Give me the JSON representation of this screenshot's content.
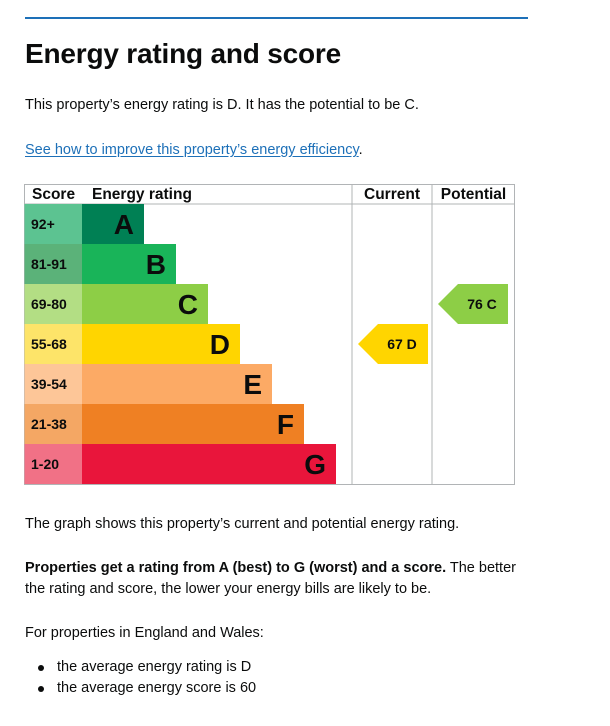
{
  "heading": "Energy rating and score",
  "intro": "This property’s energy rating is D. It has the potential to be C.",
  "improve_link": "See how to improve this property’s energy efficiency",
  "improve_link_suffix": ".",
  "chart_data": {
    "type": "bar",
    "headers": {
      "score": "Score",
      "rating": "Energy rating",
      "current": "Current",
      "potential": "Potential"
    },
    "bands": [
      {
        "score": "92+",
        "letter": "A",
        "bar_color": "#008054",
        "score_color": "#5cc391"
      },
      {
        "score": "81-91",
        "letter": "B",
        "bar_color": "#19b459",
        "score_color": "#5bb279"
      },
      {
        "score": "69-80",
        "letter": "C",
        "bar_color": "#8dce46",
        "score_color": "#b3de84"
      },
      {
        "score": "55-68",
        "letter": "D",
        "bar_color": "#ffd500",
        "score_color": "#fde469"
      },
      {
        "score": "39-54",
        "letter": "E",
        "bar_color": "#fcaa65",
        "score_color": "#fdc698"
      },
      {
        "score": "21-38",
        "letter": "F",
        "bar_color": "#ef8023",
        "score_color": "#f4a764"
      },
      {
        "score": "1-20",
        "letter": "G",
        "bar_color": "#e9153b",
        "score_color": "#f17186"
      }
    ],
    "current": {
      "score": 67,
      "letter": "D",
      "label": "67  D",
      "color": "#ffd500"
    },
    "potential": {
      "score": 76,
      "letter": "C",
      "label": "76  C",
      "color": "#8dce46"
    }
  },
  "graph_text": "The graph shows this property’s current and potential energy rating.",
  "props_bold": "Properties get a rating from A (best) to G (worst) and a score.",
  "props_rest": " The better the rating and score, the lower your energy bills are likely to be.",
  "for_props": "For properties in England and Wales:",
  "averages": [
    "the average energy rating is D",
    "the average energy score is 60"
  ]
}
